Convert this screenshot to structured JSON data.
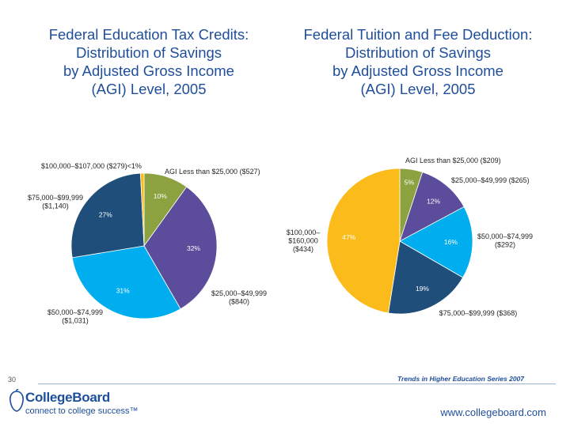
{
  "chart_data": [
    {
      "type": "pie",
      "title_lines": [
        "Federal Education Tax Credits:",
        "Distribution of Savings",
        "by Adjusted Gross Income",
        "(AGI) Level, 2005"
      ],
      "slices": [
        {
          "label": "AGI Less than $25,000 ($527)",
          "pct_text": "10%",
          "value": 10,
          "color": "#8ca240"
        },
        {
          "label": "$25,000–$49,999 ($840)",
          "pct_text": "32%",
          "value": 32,
          "color": "#5b4c9c"
        },
        {
          "label": "$50,000–$74,999 ($1,031)",
          "pct_text": "31%",
          "value": 31,
          "color": "#00aeef"
        },
        {
          "label": "$75,000–$99,999 ($1,140)",
          "pct_text": "27%",
          "value": 27,
          "color": "#1e4e79"
        },
        {
          "label": "$100,000–$107,000 ($279)",
          "pct_text": "<1%",
          "value": 0.8,
          "color": "#fbbc1b"
        }
      ]
    },
    {
      "type": "pie",
      "title_lines": [
        "Federal Tuition and Fee Deduction:",
        "Distribution of Savings",
        "by Adjusted Gross Income",
        "(AGI) Level, 2005"
      ],
      "slices": [
        {
          "label": "AGI Less than $25,000 ($209)",
          "pct_text": "5%",
          "value": 5,
          "color": "#8ca240"
        },
        {
          "label": "$25,000–$49,999 ($265)",
          "pct_text": "12%",
          "value": 12,
          "color": "#5b4c9c"
        },
        {
          "label": "$50,000–$74,999 ($292)",
          "pct_text": "16%",
          "value": 16,
          "color": "#00aeef"
        },
        {
          "label": "$75,000–$99,999 ($368)",
          "pct_text": "19%",
          "value": 19,
          "color": "#1e4e79"
        },
        {
          "label": "$100,000– $160,000 ($434)",
          "pct_text": "47%",
          "value": 47,
          "color": "#fbbc1b"
        }
      ]
    }
  ],
  "footer": {
    "page_number": "30",
    "series": "Trends in Higher Education Series 2007",
    "brand": "CollegeBoard",
    "tagline": "connect to college success™",
    "url": "www.collegeboard.com"
  }
}
